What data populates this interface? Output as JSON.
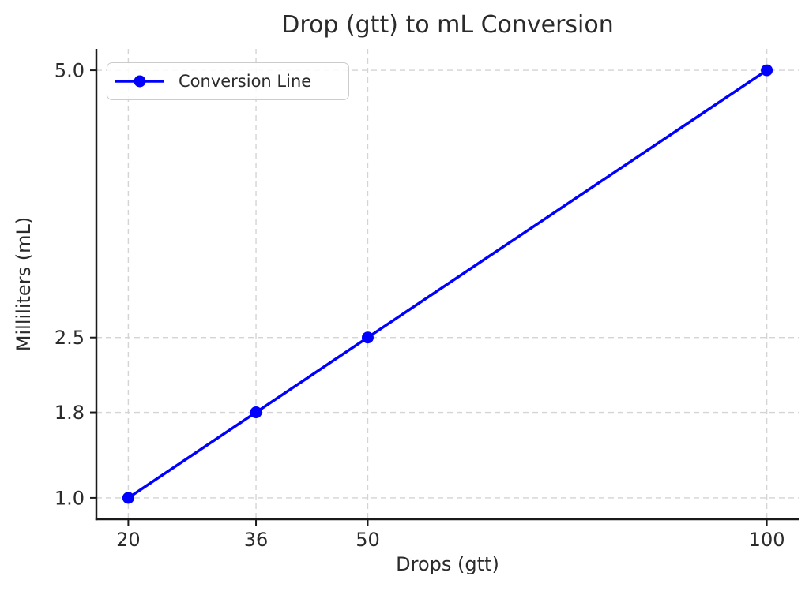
{
  "chart_data": {
    "type": "line",
    "title": "Drop (gtt) to mL Conversion",
    "xlabel": "Drops (gtt)",
    "ylabel": "Milliliters (mL)",
    "series": [
      {
        "name": "Conversion Line",
        "x": [
          20,
          36,
          50,
          100
        ],
        "y": [
          1.0,
          1.8,
          2.5,
          5.0
        ],
        "color": "#0000ff",
        "marker": "circle"
      }
    ],
    "xticks": [
      20,
      36,
      50,
      100
    ],
    "xtick_labels": [
      "20",
      "36",
      "50",
      "100"
    ],
    "yticks": [
      1.0,
      1.8,
      2.5,
      5.0
    ],
    "ytick_labels": [
      "1.0",
      "1.8",
      "2.5",
      "5.0"
    ],
    "xlim": [
      16,
      104
    ],
    "ylim": [
      0.8,
      5.2
    ],
    "grid": true,
    "grid_style": "dashed",
    "legend_position": "upper left",
    "colors": {
      "line": "#0000ff",
      "grid": "#d4d4d4",
      "spine": "#1a1a1a",
      "text": "#2b2b2b",
      "background": "#ffffff",
      "legend_border": "#cccccc"
    }
  }
}
